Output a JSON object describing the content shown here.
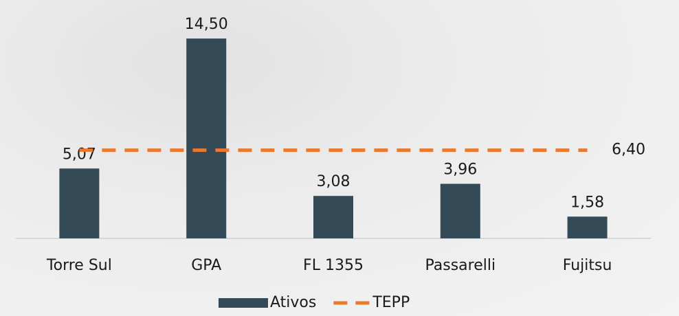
{
  "chart_data": {
    "type": "bar",
    "categories": [
      "Torre Sul",
      "GPA",
      "FL 1355",
      "Passarelli",
      "Fujitsu"
    ],
    "series": [
      {
        "name": "Ativos",
        "color": "#344b57",
        "values": [
          5.07,
          14.5,
          3.08,
          3.96,
          1.58
        ],
        "value_labels": [
          "5,07",
          "14,50",
          "3,08",
          "3,96",
          "1,58"
        ]
      },
      {
        "name": "TEPP",
        "type": "line",
        "dashed": true,
        "color": "#e8792e",
        "values": [
          6.4,
          6.4,
          6.4,
          6.4,
          6.4
        ],
        "value_labels": [
          null,
          null,
          null,
          null,
          "6,40"
        ]
      }
    ],
    "ylim": [
      0,
      16
    ]
  }
}
